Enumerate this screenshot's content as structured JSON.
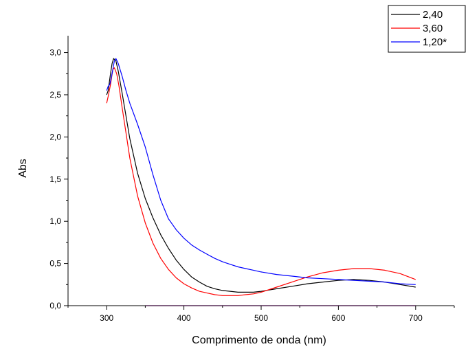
{
  "chart_data": {
    "type": "line",
    "title": "",
    "xlabel": "Comprimento de onda (nm)",
    "ylabel": "Abs",
    "xlim": [
      250,
      750
    ],
    "ylim": [
      0,
      3.2
    ],
    "xticks": [
      300,
      400,
      500,
      600,
      700
    ],
    "xtick_labels": [
      "300",
      "400",
      "500",
      "600",
      "700"
    ],
    "yticks": [
      0,
      0.5,
      1.0,
      1.5,
      2.0,
      2.5,
      3.0
    ],
    "ytick_labels": [
      "0,0",
      "0,5",
      "1,0",
      "1,5",
      "2,0",
      "2,5",
      "3,0"
    ],
    "grid": false,
    "legend_position": "top-right",
    "series": [
      {
        "name": "2,40",
        "color": "#000000",
        "points": [
          [
            300,
            2.5
          ],
          [
            302,
            2.55
          ],
          [
            305,
            2.75
          ],
          [
            307,
            2.87
          ],
          [
            309,
            2.93
          ],
          [
            312,
            2.9
          ],
          [
            315,
            2.78
          ],
          [
            320,
            2.52
          ],
          [
            325,
            2.25
          ],
          [
            330,
            1.98
          ],
          [
            340,
            1.57
          ],
          [
            350,
            1.27
          ],
          [
            360,
            1.04
          ],
          [
            370,
            0.84
          ],
          [
            380,
            0.68
          ],
          [
            390,
            0.54
          ],
          [
            400,
            0.43
          ],
          [
            410,
            0.34
          ],
          [
            420,
            0.28
          ],
          [
            430,
            0.23
          ],
          [
            440,
            0.2
          ],
          [
            450,
            0.18
          ],
          [
            460,
            0.17
          ],
          [
            470,
            0.16
          ],
          [
            480,
            0.16
          ],
          [
            490,
            0.16
          ],
          [
            500,
            0.17
          ],
          [
            520,
            0.2
          ],
          [
            540,
            0.23
          ],
          [
            560,
            0.26
          ],
          [
            580,
            0.28
          ],
          [
            600,
            0.3
          ],
          [
            620,
            0.31
          ],
          [
            640,
            0.3
          ],
          [
            660,
            0.28
          ],
          [
            680,
            0.25
          ],
          [
            700,
            0.22
          ]
        ]
      },
      {
        "name": "3,60",
        "color": "#ff0000",
        "points": [
          [
            300,
            2.4
          ],
          [
            302,
            2.48
          ],
          [
            305,
            2.62
          ],
          [
            308,
            2.8
          ],
          [
            310,
            2.82
          ],
          [
            313,
            2.75
          ],
          [
            316,
            2.6
          ],
          [
            320,
            2.35
          ],
          [
            325,
            2.05
          ],
          [
            330,
            1.75
          ],
          [
            340,
            1.3
          ],
          [
            350,
            0.98
          ],
          [
            360,
            0.74
          ],
          [
            370,
            0.56
          ],
          [
            380,
            0.43
          ],
          [
            390,
            0.33
          ],
          [
            400,
            0.26
          ],
          [
            410,
            0.21
          ],
          [
            420,
            0.17
          ],
          [
            430,
            0.15
          ],
          [
            440,
            0.13
          ],
          [
            450,
            0.12
          ],
          [
            460,
            0.12
          ],
          [
            470,
            0.12
          ],
          [
            480,
            0.13
          ],
          [
            490,
            0.14
          ],
          [
            500,
            0.16
          ],
          [
            520,
            0.22
          ],
          [
            540,
            0.28
          ],
          [
            560,
            0.34
          ],
          [
            580,
            0.39
          ],
          [
            600,
            0.42
          ],
          [
            620,
            0.44
          ],
          [
            640,
            0.44
          ],
          [
            660,
            0.42
          ],
          [
            680,
            0.38
          ],
          [
            700,
            0.31
          ]
        ]
      },
      {
        "name": "1,20*",
        "color": "#0000ff",
        "points": [
          [
            300,
            2.55
          ],
          [
            302,
            2.6
          ],
          [
            304,
            2.62
          ],
          [
            306,
            2.7
          ],
          [
            308,
            2.8
          ],
          [
            310,
            2.9
          ],
          [
            312,
            2.93
          ],
          [
            315,
            2.87
          ],
          [
            320,
            2.72
          ],
          [
            325,
            2.55
          ],
          [
            330,
            2.4
          ],
          [
            340,
            2.15
          ],
          [
            350,
            1.88
          ],
          [
            360,
            1.55
          ],
          [
            370,
            1.25
          ],
          [
            380,
            1.03
          ],
          [
            390,
            0.9
          ],
          [
            400,
            0.8
          ],
          [
            410,
            0.72
          ],
          [
            420,
            0.66
          ],
          [
            430,
            0.61
          ],
          [
            440,
            0.56
          ],
          [
            450,
            0.52
          ],
          [
            460,
            0.49
          ],
          [
            470,
            0.46
          ],
          [
            480,
            0.44
          ],
          [
            490,
            0.42
          ],
          [
            500,
            0.4
          ],
          [
            520,
            0.37
          ],
          [
            540,
            0.35
          ],
          [
            560,
            0.33
          ],
          [
            580,
            0.32
          ],
          [
            600,
            0.31
          ],
          [
            620,
            0.3
          ],
          [
            640,
            0.29
          ],
          [
            660,
            0.28
          ],
          [
            680,
            0.26
          ],
          [
            700,
            0.25
          ]
        ]
      },
      {
        "name": "",
        "color": "#ff00ff",
        "points": [
          [
            350,
            0
          ],
          [
            400,
            0
          ],
          [
            500,
            0
          ],
          [
            600,
            0
          ],
          [
            700,
            0
          ]
        ]
      }
    ]
  }
}
